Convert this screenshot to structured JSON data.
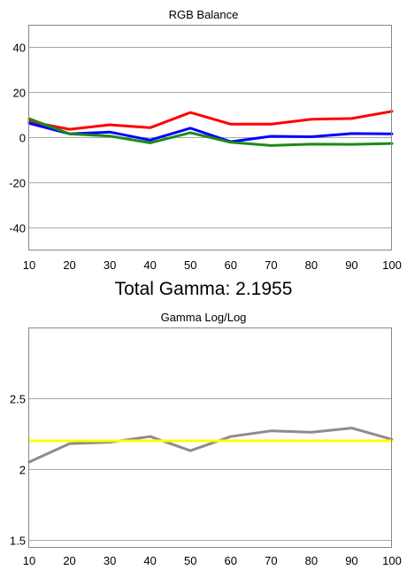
{
  "summary": {
    "total_gamma_text": "Total Gamma: 2.1955"
  },
  "chart_data": [
    {
      "type": "line",
      "title": "RGB Balance",
      "xlabel": "",
      "ylabel": "",
      "x": [
        10,
        20,
        30,
        40,
        50,
        60,
        70,
        80,
        90,
        100
      ],
      "xlim": [
        10,
        100
      ],
      "ylim": [
        -50,
        50
      ],
      "xticks": [
        "10",
        "20",
        "30",
        "40",
        "50",
        "60",
        "70",
        "80",
        "90",
        "100"
      ],
      "yticks": [
        {
          "value": 40,
          "label": "40"
        },
        {
          "value": 20,
          "label": "20"
        },
        {
          "value": 0,
          "label": "0"
        },
        {
          "value": -20,
          "label": "-20"
        },
        {
          "value": -40,
          "label": "-40"
        }
      ],
      "grid": "horizontal",
      "series": [
        {
          "color": "#ff0000",
          "values": [
            7.0,
            3.5,
            5.5,
            4.2,
            11.0,
            5.8,
            5.8,
            8.0,
            8.3,
            11.5
          ]
        },
        {
          "color": "#0000ff",
          "values": [
            6.2,
            1.5,
            2.3,
            -1.3,
            4.0,
            -2.0,
            0.4,
            0.2,
            1.6,
            1.5
          ]
        },
        {
          "color": "#1a8a1a",
          "values": [
            8.2,
            1.5,
            0.5,
            -2.5,
            2.0,
            -2.3,
            -3.7,
            -3.1,
            -3.2,
            -2.8
          ]
        }
      ]
    },
    {
      "type": "line",
      "title": "Gamma Log/Log",
      "xlabel": "",
      "ylabel": "",
      "x": [
        10,
        20,
        30,
        40,
        50,
        60,
        70,
        80,
        90,
        100
      ],
      "xlim": [
        10,
        100
      ],
      "ylim": [
        1.45,
        3.0
      ],
      "xticks": [
        "10",
        "20",
        "30",
        "40",
        "50",
        "60",
        "70",
        "80",
        "90",
        "100"
      ],
      "yticks": [
        {
          "value": 2.5,
          "label": "2.5"
        },
        {
          "value": 2.0,
          "label": "2"
        },
        {
          "value": 1.5,
          "label": "1.5"
        }
      ],
      "grid": "horizontal",
      "series": [
        {
          "color": "#8c8c8c",
          "values": [
            2.05,
            2.18,
            2.19,
            2.23,
            2.13,
            2.23,
            2.27,
            2.26,
            2.29,
            2.21
          ]
        },
        {
          "color": "#ffff00",
          "values": [
            2.2,
            2.2,
            2.2,
            2.2,
            2.2,
            2.2,
            2.2,
            2.2,
            2.2,
            2.2
          ]
        }
      ]
    }
  ]
}
